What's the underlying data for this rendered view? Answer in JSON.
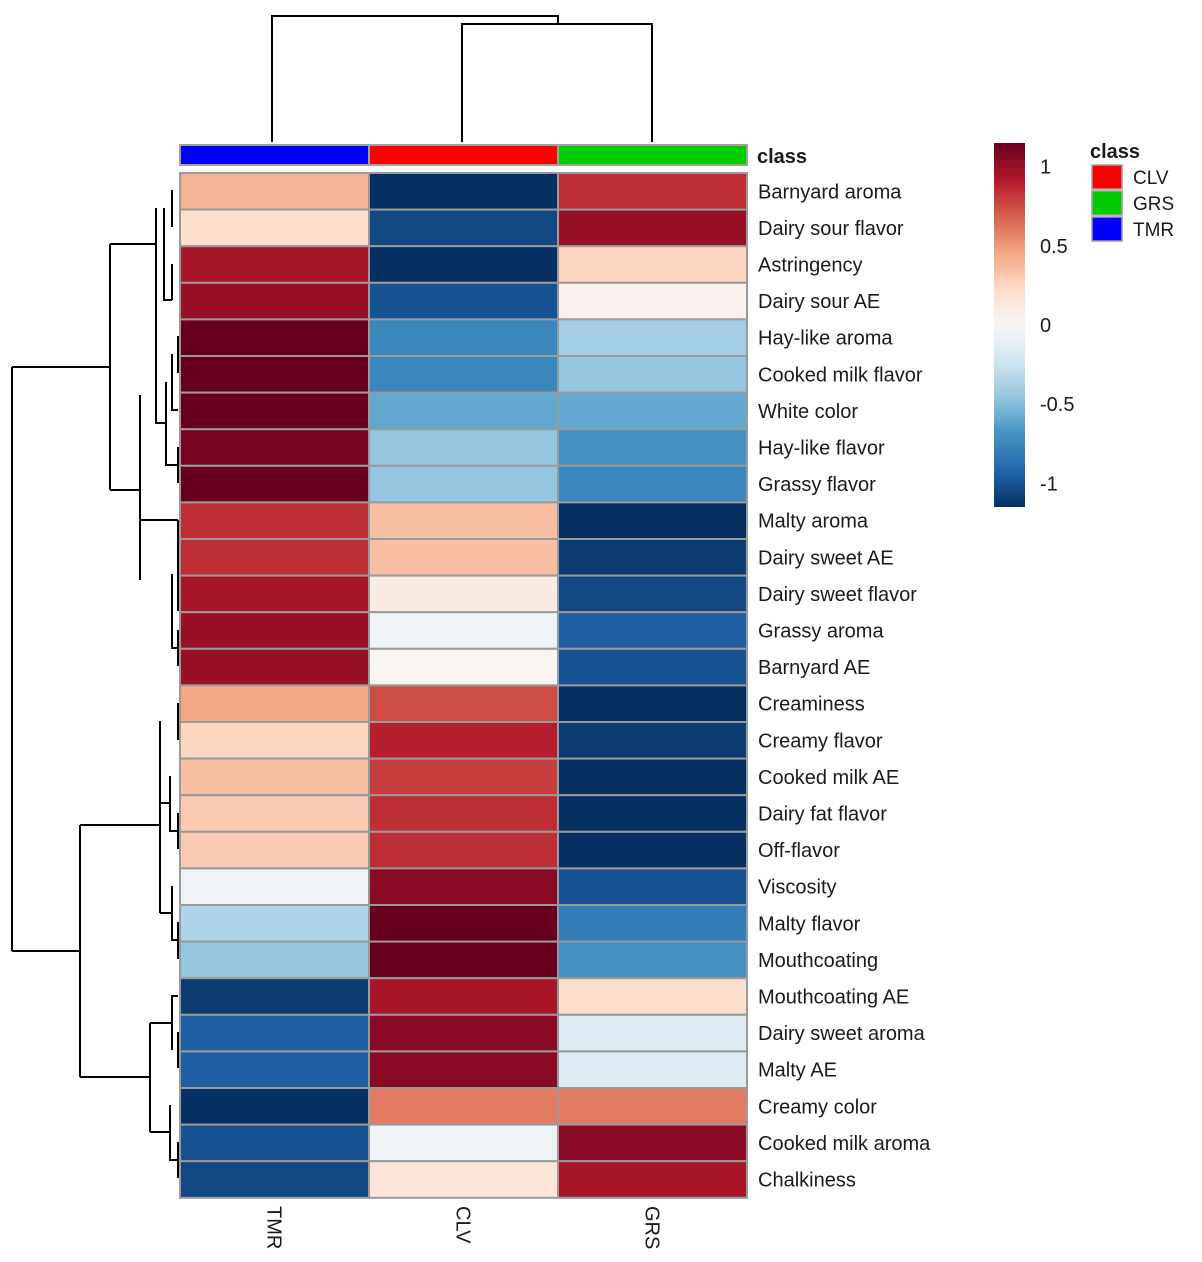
{
  "chart_data": {
    "type": "heatmap",
    "title": "",
    "columns": [
      "TMR",
      "CLV",
      "GRS"
    ],
    "annotation": {
      "title": "class",
      "column_classes": [
        "TMR",
        "CLV",
        "GRS"
      ],
      "legend": [
        {
          "label": "CLV",
          "color": "#ff0000"
        },
        {
          "label": "GRS",
          "color": "#00cc00"
        },
        {
          "label": "TMR",
          "color": "#0000ff"
        }
      ]
    },
    "color_scale": {
      "min": -1.15,
      "max": 1.15,
      "ticks": [
        1,
        0.5,
        0,
        -0.5,
        -1
      ],
      "tick_labels": [
        "1",
        "0.5",
        "0",
        "-0.5",
        "-1"
      ],
      "colors": [
        "#053061",
        "#2166ac",
        "#4393c3",
        "#92c5de",
        "#d1e5f0",
        "#f7f7f7",
        "#fddbc7",
        "#f4a582",
        "#d6604d",
        "#b2182b",
        "#67001f"
      ]
    },
    "rows": [
      {
        "label": "Barnyard aroma",
        "values": [
          0.4,
          -1.15,
          0.85
        ]
      },
      {
        "label": "Dairy sour flavor",
        "values": [
          0.2,
          -1.05,
          1.0
        ]
      },
      {
        "label": "Astringency",
        "values": [
          0.95,
          -1.15,
          0.25
        ]
      },
      {
        "label": "Dairy sour AE",
        "values": [
          1.0,
          -1.0,
          0.05
        ]
      },
      {
        "label": "Hay-like aroma",
        "values": [
          1.15,
          -0.75,
          -0.4
        ]
      },
      {
        "label": "Cooked milk flavor",
        "values": [
          1.15,
          -0.75,
          -0.45
        ]
      },
      {
        "label": "White color",
        "values": [
          1.15,
          -0.6,
          -0.6
        ]
      },
      {
        "label": "Hay-like flavor",
        "values": [
          1.1,
          -0.45,
          -0.7
        ]
      },
      {
        "label": "Grassy flavor",
        "values": [
          1.15,
          -0.45,
          -0.75
        ]
      },
      {
        "label": "Malty aroma",
        "values": [
          0.85,
          0.35,
          -1.15
        ]
      },
      {
        "label": "Dairy sweet AE",
        "values": [
          0.85,
          0.35,
          -1.1
        ]
      },
      {
        "label": "Dairy sweet flavor",
        "values": [
          0.95,
          0.1,
          -1.05
        ]
      },
      {
        "label": "Grassy aroma",
        "values": [
          1.0,
          -0.05,
          -0.95
        ]
      },
      {
        "label": "Barnyard AE",
        "values": [
          1.0,
          0.02,
          -1.0
        ]
      },
      {
        "label": "Creaminess",
        "values": [
          0.45,
          0.75,
          -1.15
        ]
      },
      {
        "label": "Creamy flavor",
        "values": [
          0.25,
          0.9,
          -1.1
        ]
      },
      {
        "label": "Cooked milk AE",
        "values": [
          0.35,
          0.8,
          -1.15
        ]
      },
      {
        "label": "Dairy fat flavor",
        "values": [
          0.3,
          0.85,
          -1.15
        ]
      },
      {
        "label": "Off-flavor",
        "values": [
          0.3,
          0.85,
          -1.15
        ]
      },
      {
        "label": "Viscosity",
        "values": [
          -0.05,
          1.05,
          -1.0
        ]
      },
      {
        "label": "Malty flavor",
        "values": [
          -0.35,
          1.15,
          -0.8
        ]
      },
      {
        "label": "Mouthcoating",
        "values": [
          -0.45,
          1.15,
          -0.7
        ]
      },
      {
        "label": "Mouthcoating AE",
        "values": [
          -1.1,
          0.95,
          0.2
        ]
      },
      {
        "label": "Dairy sweet aroma",
        "values": [
          -0.95,
          1.05,
          -0.15
        ]
      },
      {
        "label": "Malty AE",
        "values": [
          -0.95,
          1.05,
          -0.15
        ]
      },
      {
        "label": "Creamy color",
        "values": [
          -1.15,
          0.6,
          0.6
        ]
      },
      {
        "label": "Cooked milk aroma",
        "values": [
          -1.0,
          -0.05,
          1.05
        ]
      },
      {
        "label": "Chalkiness",
        "values": [
          -1.05,
          0.15,
          0.95
        ]
      }
    ],
    "dendrogram": {
      "columns": "TMR joins (CLV, GRS)",
      "rows": "hierarchical clustering of 28 attributes"
    }
  }
}
